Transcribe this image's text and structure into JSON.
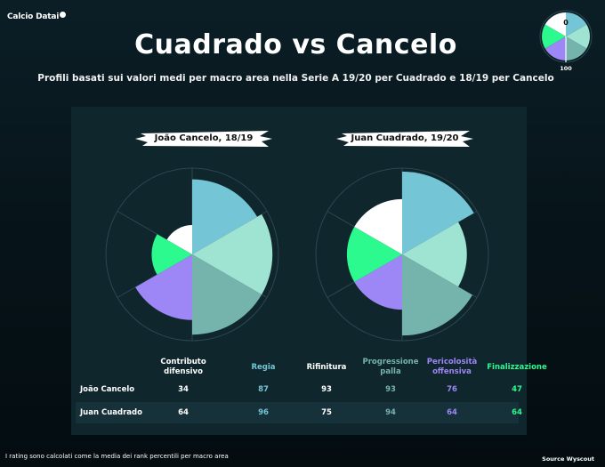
{
  "brand": "Calcio Datai",
  "header": {
    "title": "Cuadrado vs Cancelo",
    "subtitle": "Profili basati sui valori medi per macro area nella Serie A 19/20 per Cuadrado e 18/19 per Cancelo"
  },
  "legend": {
    "min_label": "0",
    "max_label": "100"
  },
  "colors": {
    "contributo_difensivo": "#ffffff",
    "regia": "#74c5d5",
    "rifinitura": "#9fe3d3",
    "progressione_palla": "#75b3ad",
    "pericolosita_offensiva": "#9d86f6",
    "finalizzazione": "#2cf98e",
    "background": "#061318",
    "panel": "#10262d"
  },
  "chart_data": [
    {
      "type": "polar_area",
      "player": "João Cancelo, 18/19",
      "categories": [
        "Contributo difensivo",
        "Regia",
        "Rifinitura",
        "Progressione palla",
        "Pericolosità offensiva",
        "Finalizzazione"
      ],
      "values": [
        34,
        87,
        93,
        93,
        76,
        47
      ],
      "rlim": [
        0,
        100
      ]
    },
    {
      "type": "polar_area",
      "player": "Juan Cuadrado, 19/20",
      "categories": [
        "Contributo difensivo",
        "Regia",
        "Rifinitura",
        "Progressione palla",
        "Pericolosità offensiva",
        "Finalizzazione"
      ],
      "values": [
        64,
        96,
        75,
        94,
        64,
        64
      ],
      "rlim": [
        0,
        100
      ]
    }
  ],
  "table": {
    "headers": [
      "Contributo\ndifensivo",
      "Regia",
      "Rifinitura",
      "Progressione\npalla",
      "Pericolosità\noffensiva",
      "Finalizzazione"
    ],
    "rows": [
      {
        "name": "João Cancelo",
        "values": [
          "34",
          "87",
          "93",
          "93",
          "76",
          "47"
        ]
      },
      {
        "name": "Juan Cuadrado",
        "values": [
          "64",
          "96",
          "75",
          "94",
          "64",
          "64"
        ]
      }
    ]
  },
  "footnote": "I rating sono calcolati come la media dei rank percentili per macro area",
  "source": "Source Wyscout"
}
